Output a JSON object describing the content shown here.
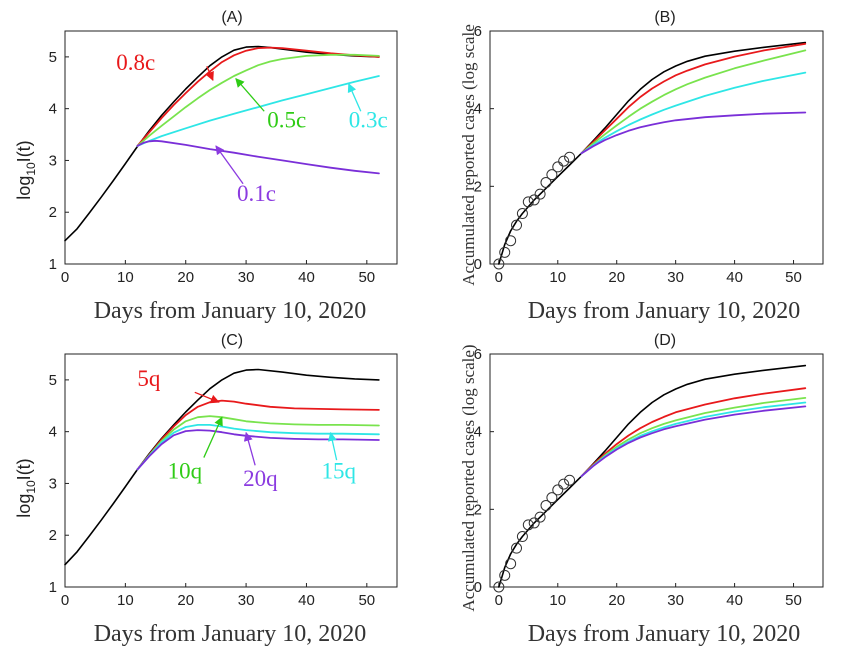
{
  "chart_data": [
    {
      "panel": "A",
      "type": "line",
      "title": "(A)",
      "xlabel": "Days from January 10, 2020",
      "ylabel": "log10I(t)",
      "ylabel_main": "log",
      "ylabel_sub": "10",
      "ylabel_rest": "I(t)",
      "xlim": [
        0,
        55
      ],
      "ylim": [
        1,
        5.5
      ],
      "xticks": [
        0,
        10,
        20,
        30,
        40,
        50
      ],
      "yticks": [
        1,
        2,
        3,
        4,
        5
      ],
      "series": [
        {
          "color": "#000000",
          "x": [
            0,
            2,
            4,
            6,
            8,
            10,
            12,
            14,
            16,
            18,
            20,
            22,
            24,
            26,
            28,
            30,
            32,
            34,
            36,
            40,
            44,
            48,
            52
          ],
          "y": [
            1.45,
            1.68,
            1.98,
            2.29,
            2.61,
            2.94,
            3.27,
            3.58,
            3.87,
            4.13,
            4.38,
            4.61,
            4.83,
            5.0,
            5.13,
            5.19,
            5.2,
            5.18,
            5.15,
            5.09,
            5.05,
            5.02,
            5.0
          ]
        },
        {
          "color": "#e8191b",
          "x": [
            12,
            14,
            16,
            18,
            20,
            22,
            24,
            26,
            28,
            30,
            32,
            34,
            36,
            40,
            44,
            48,
            52
          ],
          "y": [
            3.28,
            3.55,
            3.82,
            4.07,
            4.3,
            4.52,
            4.72,
            4.9,
            5.03,
            5.12,
            5.17,
            5.18,
            5.17,
            5.12,
            5.07,
            5.03,
            5.0
          ]
        },
        {
          "color": "#79e34d",
          "x": [
            12,
            14,
            16,
            18,
            20,
            22,
            24,
            26,
            28,
            30,
            32,
            34,
            36,
            40,
            44,
            48,
            52
          ],
          "y": [
            3.28,
            3.48,
            3.67,
            3.85,
            4.03,
            4.2,
            4.36,
            4.5,
            4.63,
            4.74,
            4.84,
            4.91,
            4.96,
            5.02,
            5.04,
            5.04,
            5.02
          ]
        },
        {
          "color": "#2ee6e6",
          "x": [
            12,
            14,
            16,
            20,
            24,
            28,
            32,
            36,
            40,
            44,
            48,
            52
          ],
          "y": [
            3.28,
            3.38,
            3.47,
            3.62,
            3.77,
            3.9,
            4.03,
            4.16,
            4.28,
            4.4,
            4.52,
            4.63
          ]
        },
        {
          "color": "#7a2fd8",
          "x": [
            12,
            13,
            14,
            15,
            16,
            20,
            24,
            28,
            32,
            36,
            40,
            44,
            48,
            52
          ],
          "y": [
            3.28,
            3.34,
            3.37,
            3.38,
            3.37,
            3.3,
            3.22,
            3.15,
            3.07,
            3.0,
            2.93,
            2.86,
            2.8,
            2.75
          ]
        }
      ],
      "annotations": [
        {
          "text": "0.8c",
          "color": "#e8191b",
          "tx": 8.5,
          "ty": 4.75,
          "ax": 24.5,
          "ay": 4.55,
          "at": 23.5,
          "aty": 4.82
        },
        {
          "text": "0.5c",
          "color": "#2fcc16",
          "tx": 33.5,
          "ty": 3.64,
          "ax": 28.3,
          "ay": 4.58,
          "at": 33.0,
          "aty": 3.95
        },
        {
          "text": "0.3c",
          "color": "#2ee6e6",
          "tx": 47.0,
          "ty": 3.64,
          "ax": 47.0,
          "ay": 4.48,
          "at": 49.0,
          "aty": 3.95
        },
        {
          "text": "0.1c",
          "color": "#8b3be0",
          "tx": 28.5,
          "ty": 2.22,
          "ax": 25.0,
          "ay": 3.28,
          "at": 29.5,
          "aty": 2.55
        }
      ]
    },
    {
      "panel": "B",
      "type": "line",
      "title": "(B)",
      "xlabel": "Days from January 10, 2020",
      "ylabel": "Accumulated reported cases (log scale",
      "xlim": [
        -1.5,
        55
      ],
      "ylim": [
        0,
        6
      ],
      "xticks": [
        0,
        10,
        20,
        30,
        40,
        50
      ],
      "yticks": [
        0,
        2,
        4,
        6
      ],
      "observed": {
        "x": [
          0,
          1,
          2,
          3,
          4,
          5,
          6,
          7,
          8,
          9,
          10,
          11,
          12
        ],
        "y": [
          0.0,
          0.3,
          0.6,
          1.0,
          1.3,
          1.6,
          1.65,
          1.8,
          2.1,
          2.3,
          2.5,
          2.65,
          2.75
        ]
      },
      "series": [
        {
          "color": "#000000",
          "x": [
            0,
            0.5,
            1,
            2,
            3,
            4,
            6,
            8,
            10,
            12,
            14,
            16,
            18,
            20,
            22,
            24,
            26,
            28,
            30,
            32,
            35,
            40,
            45,
            52
          ],
          "y": [
            0.0,
            0.25,
            0.5,
            0.85,
            1.1,
            1.3,
            1.65,
            1.95,
            2.25,
            2.55,
            2.85,
            3.17,
            3.5,
            3.85,
            4.2,
            4.5,
            4.75,
            4.95,
            5.1,
            5.22,
            5.35,
            5.48,
            5.58,
            5.7
          ]
        },
        {
          "color": "#e8191b",
          "x": [
            14,
            16,
            18,
            20,
            22,
            24,
            26,
            28,
            30,
            32,
            35,
            40,
            45,
            52
          ],
          "y": [
            2.85,
            3.14,
            3.44,
            3.74,
            4.04,
            4.3,
            4.52,
            4.7,
            4.86,
            4.98,
            5.14,
            5.34,
            5.5,
            5.67
          ]
        },
        {
          "color": "#79e34d",
          "x": [
            14,
            16,
            18,
            20,
            22,
            24,
            26,
            28,
            30,
            32,
            35,
            40,
            45,
            52
          ],
          "y": [
            2.85,
            3.1,
            3.34,
            3.57,
            3.79,
            4.0,
            4.18,
            4.35,
            4.5,
            4.63,
            4.8,
            5.04,
            5.24,
            5.5
          ]
        },
        {
          "color": "#2ee6e6",
          "x": [
            14,
            16,
            18,
            20,
            22,
            24,
            26,
            28,
            30,
            35,
            40,
            45,
            52
          ],
          "y": [
            2.85,
            3.06,
            3.25,
            3.42,
            3.58,
            3.72,
            3.85,
            3.97,
            4.08,
            4.33,
            4.54,
            4.72,
            4.93
          ]
        },
        {
          "color": "#7a2fd8",
          "x": [
            14,
            16,
            18,
            20,
            22,
            24,
            26,
            28,
            30,
            35,
            40,
            45,
            52
          ],
          "y": [
            2.85,
            3.03,
            3.19,
            3.32,
            3.43,
            3.52,
            3.59,
            3.65,
            3.7,
            3.78,
            3.83,
            3.87,
            3.9
          ]
        }
      ]
    },
    {
      "panel": "C",
      "type": "line",
      "title": "(C)",
      "xlabel": "Days from January 10, 2020",
      "ylabel": "log10I(t)",
      "ylabel_main": "log",
      "ylabel_sub": "10",
      "ylabel_rest": "I(t)",
      "xlim": [
        0,
        55
      ],
      "ylim": [
        1,
        5.5
      ],
      "xticks": [
        0,
        10,
        20,
        30,
        40,
        50
      ],
      "yticks": [
        1,
        2,
        3,
        4,
        5
      ],
      "series": [
        {
          "color": "#000000",
          "x": [
            0,
            2,
            4,
            6,
            8,
            10,
            12,
            14,
            16,
            18,
            20,
            22,
            24,
            26,
            28,
            30,
            32,
            36,
            40,
            44,
            48,
            52
          ],
          "y": [
            1.43,
            1.68,
            1.98,
            2.29,
            2.61,
            2.94,
            3.27,
            3.58,
            3.87,
            4.13,
            4.38,
            4.61,
            4.83,
            5.0,
            5.13,
            5.19,
            5.2,
            5.15,
            5.09,
            5.05,
            5.02,
            5.0
          ]
        },
        {
          "color": "#e8191b",
          "x": [
            12,
            14,
            16,
            18,
            20,
            22,
            24,
            26,
            28,
            30,
            34,
            38,
            42,
            46,
            52
          ],
          "y": [
            3.27,
            3.56,
            3.85,
            4.1,
            4.32,
            4.48,
            4.57,
            4.6,
            4.58,
            4.54,
            4.48,
            4.45,
            4.44,
            4.43,
            4.42
          ]
        },
        {
          "color": "#79e34d",
          "x": [
            12,
            14,
            16,
            18,
            20,
            22,
            24,
            26,
            28,
            30,
            34,
            38,
            42,
            46,
            52
          ],
          "y": [
            3.27,
            3.55,
            3.82,
            4.04,
            4.2,
            4.28,
            4.3,
            4.28,
            4.24,
            4.2,
            4.16,
            4.14,
            4.13,
            4.13,
            4.12
          ]
        },
        {
          "color": "#2ee6e6",
          "x": [
            12,
            14,
            16,
            18,
            20,
            22,
            24,
            26,
            28,
            30,
            34,
            38,
            42,
            46,
            52
          ],
          "y": [
            3.27,
            3.54,
            3.79,
            3.98,
            4.09,
            4.13,
            4.13,
            4.1,
            4.06,
            4.03,
            3.99,
            3.97,
            3.96,
            3.96,
            3.95
          ]
        },
        {
          "color": "#7a2fd8",
          "x": [
            12,
            14,
            16,
            18,
            20,
            22,
            24,
            26,
            28,
            30,
            34,
            38,
            42,
            46,
            52
          ],
          "y": [
            3.27,
            3.53,
            3.76,
            3.93,
            4.01,
            4.03,
            4.02,
            3.99,
            3.95,
            3.92,
            3.88,
            3.86,
            3.85,
            3.85,
            3.84
          ]
        }
      ],
      "annotations": [
        {
          "text": "5q",
          "color": "#e8191b",
          "tx": 12.0,
          "ty": 4.88,
          "ax": 25.5,
          "ay": 4.57,
          "at": 21.5,
          "aty": 4.76
        },
        {
          "text": "10q",
          "color": "#2fcc16",
          "tx": 17.0,
          "ty": 3.1,
          "ax": 26.0,
          "ay": 4.28,
          "at": 23.0,
          "aty": 3.5
        },
        {
          "text": "20q",
          "color": "#8b3be0",
          "tx": 29.5,
          "ty": 2.95,
          "ax": 30.0,
          "ay": 3.98,
          "at": 31.5,
          "aty": 3.35
        },
        {
          "text": "15q",
          "color": "#2ee6e6",
          "tx": 42.5,
          "ty": 3.1,
          "ax": 44.0,
          "ay": 3.98,
          "at": 45.0,
          "aty": 3.45
        }
      ]
    },
    {
      "panel": "D",
      "type": "line",
      "title": "(D)",
      "xlabel": "Days from January 10, 2020",
      "ylabel": "Accumulated reported cases (log scale)",
      "xlim": [
        -1.5,
        55
      ],
      "ylim": [
        0,
        6
      ],
      "xticks": [
        0,
        10,
        20,
        30,
        40,
        50
      ],
      "yticks": [
        0,
        2,
        4,
        6
      ],
      "observed": {
        "x": [
          0,
          1,
          2,
          3,
          4,
          5,
          6,
          7,
          8,
          9,
          10,
          11,
          12
        ],
        "y": [
          0.0,
          0.3,
          0.6,
          1.0,
          1.3,
          1.6,
          1.65,
          1.8,
          2.1,
          2.3,
          2.5,
          2.65,
          2.75
        ]
      },
      "series": [
        {
          "color": "#000000",
          "x": [
            0,
            0.5,
            1,
            2,
            3,
            4,
            6,
            8,
            10,
            12,
            14,
            16,
            18,
            20,
            22,
            24,
            26,
            28,
            30,
            32,
            35,
            40,
            45,
            52
          ],
          "y": [
            0.0,
            0.25,
            0.5,
            0.85,
            1.1,
            1.3,
            1.65,
            1.95,
            2.25,
            2.55,
            2.85,
            3.17,
            3.5,
            3.85,
            4.2,
            4.5,
            4.75,
            4.95,
            5.1,
            5.22,
            5.35,
            5.48,
            5.58,
            5.7
          ]
        },
        {
          "color": "#e8191b",
          "x": [
            14,
            16,
            18,
            20,
            22,
            24,
            26,
            28,
            30,
            35,
            40,
            45,
            52
          ],
          "y": [
            2.85,
            3.15,
            3.43,
            3.68,
            3.9,
            4.09,
            4.25,
            4.38,
            4.5,
            4.7,
            4.86,
            4.98,
            5.12
          ]
        },
        {
          "color": "#79e34d",
          "x": [
            14,
            16,
            18,
            20,
            22,
            24,
            26,
            28,
            30,
            35,
            40,
            45,
            52
          ],
          "y": [
            2.85,
            3.13,
            3.39,
            3.61,
            3.8,
            3.96,
            4.09,
            4.2,
            4.29,
            4.48,
            4.62,
            4.74,
            4.87
          ]
        },
        {
          "color": "#2ee6e6",
          "x": [
            14,
            16,
            18,
            20,
            22,
            24,
            26,
            28,
            30,
            35,
            40,
            45,
            52
          ],
          "y": [
            2.85,
            3.12,
            3.36,
            3.57,
            3.74,
            3.89,
            4.01,
            4.11,
            4.2,
            4.38,
            4.52,
            4.63,
            4.75
          ]
        },
        {
          "color": "#7a2fd8",
          "x": [
            14,
            16,
            18,
            20,
            22,
            24,
            26,
            28,
            30,
            35,
            40,
            45,
            52
          ],
          "y": [
            2.85,
            3.11,
            3.34,
            3.54,
            3.71,
            3.85,
            3.96,
            4.06,
            4.14,
            4.31,
            4.44,
            4.54,
            4.65
          ]
        }
      ]
    }
  ]
}
